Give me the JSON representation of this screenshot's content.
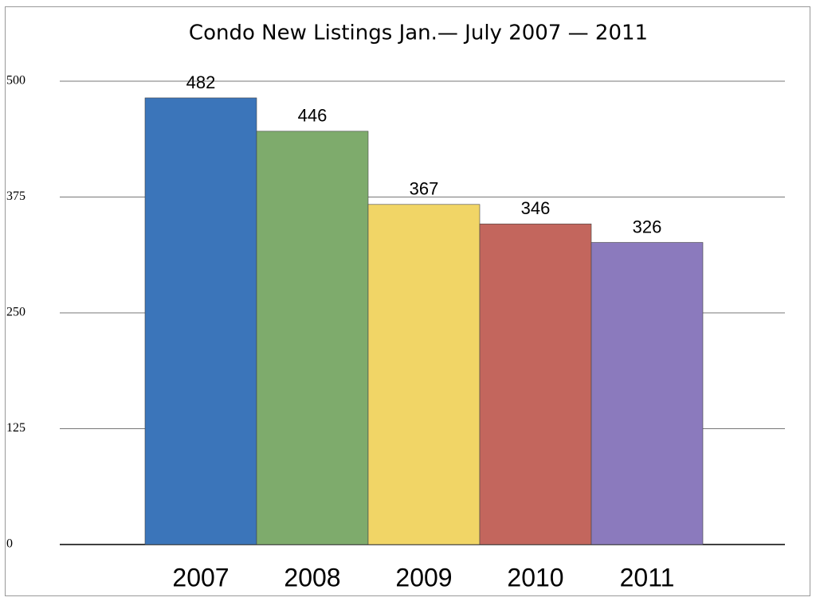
{
  "chart_data": {
    "type": "bar",
    "title": "Condo New Listings Jan.— July 2007 — 2011",
    "categories": [
      "2007",
      "2008",
      "2009",
      "2010",
      "2011"
    ],
    "values": [
      482,
      446,
      367,
      346,
      326
    ],
    "colors": [
      "#3b75ba",
      "#7eab6c",
      "#f1d566",
      "#c3665d",
      "#8b7abd"
    ],
    "ylim": [
      0,
      500
    ],
    "yticks": [
      0,
      125,
      250,
      375,
      500
    ],
    "grid": true
  }
}
